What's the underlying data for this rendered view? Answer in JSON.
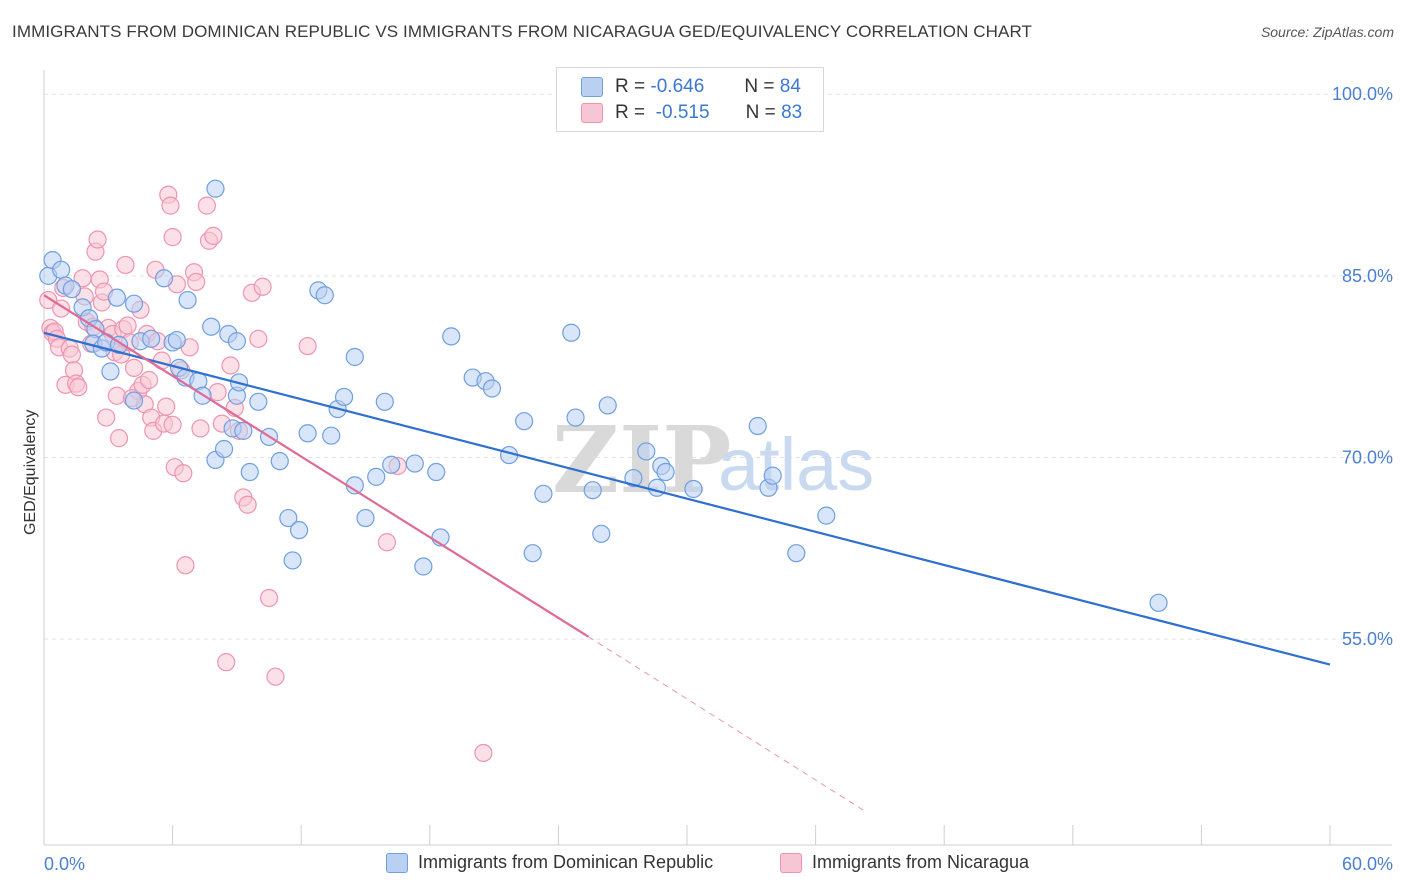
{
  "title": "IMMIGRANTS FROM DOMINICAN REPUBLIC VS IMMIGRANTS FROM NICARAGUA GED/EQUIVALENCY CORRELATION CHART",
  "source": "Source: ZipAtlas.com",
  "watermark": {
    "part1": "ZIP",
    "part2": "atlas"
  },
  "colors": {
    "blue_fill": "#b9d0f2",
    "blue_stroke": "#6f9fe0",
    "blue_line": "#2e6fd0",
    "pink_fill": "#f7c6d4",
    "pink_stroke": "#ee94b0",
    "pink_line": "#e06a96",
    "grid": "#e3e3e3",
    "tick_text": "#4a7fd1"
  },
  "legend": {
    "rows": [
      {
        "r_label": "R =",
        "r_value": "-0.646",
        "n_label": "N =",
        "n_value": "84"
      },
      {
        "r_label": "R =",
        "r_value": "-0.515",
        "n_label": "N =",
        "n_value": "83"
      }
    ]
  },
  "bottom_legend": {
    "blue": "Immigrants from Dominican Republic",
    "pink": "Immigrants from Nicaragua"
  },
  "chart_data": {
    "type": "scatter",
    "title": "IMMIGRANTS FROM DOMINICAN REPUBLIC VS IMMIGRANTS FROM NICARAGUA GED/EQUIVALENCY CORRELATION CHART",
    "xlabel": "",
    "ylabel": "GED/Equivalency",
    "xlim": [
      0,
      60
    ],
    "ylim": [
      38,
      102
    ],
    "x_tick_labels": [
      "0.0%",
      "60.0%"
    ],
    "y_ticks": [
      55,
      70,
      85,
      100
    ],
    "y_tick_labels": [
      "55.0%",
      "70.0%",
      "85.0%",
      "100.0%"
    ],
    "grid": true,
    "legend_placement": "top-center",
    "series": [
      {
        "name": "Immigrants from Dominican Republic",
        "color": "#6f9fe0",
        "trend": {
          "x": [
            0,
            60
          ],
          "y": [
            80.3,
            52.9
          ]
        },
        "points": [
          [
            0.2,
            85.0
          ],
          [
            0.4,
            86.3
          ],
          [
            0.8,
            85.5
          ],
          [
            1.0,
            84.2
          ],
          [
            1.3,
            83.9
          ],
          [
            1.8,
            82.4
          ],
          [
            2.1,
            81.5
          ],
          [
            2.4,
            80.6
          ],
          [
            2.3,
            79.4
          ],
          [
            2.7,
            79.0
          ],
          [
            2.9,
            79.5
          ],
          [
            3.4,
            83.2
          ],
          [
            3.5,
            79.3
          ],
          [
            4.2,
            82.7
          ],
          [
            4.5,
            79.6
          ],
          [
            5.0,
            79.8
          ],
          [
            6.0,
            79.5
          ],
          [
            6.3,
            77.4
          ],
          [
            6.6,
            76.6
          ],
          [
            7.2,
            76.3
          ],
          [
            7.4,
            75.1
          ],
          [
            8.0,
            92.2
          ],
          [
            5.6,
            84.8
          ],
          [
            6.7,
            83.0
          ],
          [
            3.1,
            77.1
          ],
          [
            4.2,
            74.7
          ],
          [
            7.8,
            80.8
          ],
          [
            8.6,
            80.2
          ],
          [
            9.0,
            79.6
          ],
          [
            9.0,
            75.1
          ],
          [
            9.1,
            76.2
          ],
          [
            8.8,
            72.4
          ],
          [
            8.0,
            69.8
          ],
          [
            8.4,
            70.7
          ],
          [
            9.3,
            72.2
          ],
          [
            9.6,
            68.8
          ],
          [
            10.0,
            74.6
          ],
          [
            10.5,
            71.7
          ],
          [
            11.0,
            69.7
          ],
          [
            11.4,
            65.0
          ],
          [
            11.6,
            61.5
          ],
          [
            11.9,
            64.0
          ],
          [
            12.3,
            72.0
          ],
          [
            12.8,
            83.8
          ],
          [
            13.1,
            83.4
          ],
          [
            13.4,
            71.8
          ],
          [
            13.7,
            74.0
          ],
          [
            14.0,
            75.0
          ],
          [
            14.5,
            78.3
          ],
          [
            14.5,
            67.7
          ],
          [
            15.0,
            65.0
          ],
          [
            15.5,
            68.4
          ],
          [
            15.9,
            74.6
          ],
          [
            16.2,
            69.4
          ],
          [
            17.3,
            69.5
          ],
          [
            17.7,
            61.0
          ],
          [
            18.3,
            68.8
          ],
          [
            18.5,
            63.4
          ],
          [
            19.0,
            80.0
          ],
          [
            20.0,
            76.6
          ],
          [
            20.6,
            76.3
          ],
          [
            20.9,
            75.7
          ],
          [
            21.7,
            70.2
          ],
          [
            22.4,
            73.0
          ],
          [
            22.8,
            62.1
          ],
          [
            23.3,
            67.0
          ],
          [
            24.6,
            80.3
          ],
          [
            24.8,
            73.3
          ],
          [
            25.6,
            67.3
          ],
          [
            26.0,
            63.7
          ],
          [
            26.3,
            74.3
          ],
          [
            27.5,
            68.3
          ],
          [
            28.1,
            70.5
          ],
          [
            28.6,
            67.5
          ],
          [
            28.8,
            69.3
          ],
          [
            29.0,
            68.8
          ],
          [
            30.3,
            67.4
          ],
          [
            33.3,
            72.6
          ],
          [
            33.8,
            67.5
          ],
          [
            34.0,
            68.5
          ],
          [
            35.1,
            62.1
          ],
          [
            36.5,
            65.2
          ],
          [
            52.0,
            58.0
          ],
          [
            6.2,
            79.7
          ]
        ]
      },
      {
        "name": "Immigrants from Nicaragua",
        "color": "#ee94b0",
        "trend": {
          "x": [
            0,
            25.4
          ],
          "y": [
            83.4,
            55.2
          ]
        },
        "trend_dashed": {
          "x": [
            25.4,
            38.3
          ],
          "y": [
            55.2,
            40.8
          ]
        },
        "points": [
          [
            0.2,
            83.0
          ],
          [
            0.3,
            80.7
          ],
          [
            0.4,
            80.3
          ],
          [
            0.5,
            80.4
          ],
          [
            0.6,
            79.8
          ],
          [
            0.7,
            79.1
          ],
          [
            0.8,
            82.3
          ],
          [
            0.9,
            84.0
          ],
          [
            1.0,
            76.0
          ],
          [
            1.2,
            79.0
          ],
          [
            1.3,
            78.5
          ],
          [
            1.4,
            77.2
          ],
          [
            1.5,
            76.1
          ],
          [
            1.6,
            75.8
          ],
          [
            1.8,
            84.8
          ],
          [
            1.9,
            83.3
          ],
          [
            2.0,
            81.2
          ],
          [
            2.2,
            79.4
          ],
          [
            2.3,
            80.8
          ],
          [
            2.4,
            87.0
          ],
          [
            2.5,
            88.0
          ],
          [
            2.6,
            84.7
          ],
          [
            2.7,
            82.8
          ],
          [
            2.8,
            83.7
          ],
          [
            2.9,
            73.3
          ],
          [
            3.0,
            80.7
          ],
          [
            3.2,
            80.2
          ],
          [
            3.3,
            78.7
          ],
          [
            3.4,
            75.1
          ],
          [
            3.5,
            71.6
          ],
          [
            3.6,
            78.5
          ],
          [
            3.7,
            80.6
          ],
          [
            3.8,
            85.9
          ],
          [
            3.9,
            80.9
          ],
          [
            4.0,
            79.5
          ],
          [
            4.2,
            77.4
          ],
          [
            4.4,
            75.5
          ],
          [
            4.5,
            82.2
          ],
          [
            4.6,
            76.0
          ],
          [
            4.7,
            74.4
          ],
          [
            4.8,
            80.2
          ],
          [
            4.9,
            76.4
          ],
          [
            5.0,
            73.3
          ],
          [
            5.1,
            72.2
          ],
          [
            5.2,
            85.5
          ],
          [
            5.3,
            79.6
          ],
          [
            5.5,
            78.0
          ],
          [
            5.6,
            72.8
          ],
          [
            5.7,
            74.2
          ],
          [
            5.8,
            91.7
          ],
          [
            5.9,
            90.8
          ],
          [
            6.0,
            88.2
          ],
          [
            6.1,
            69.2
          ],
          [
            6.2,
            84.3
          ],
          [
            6.4,
            77.2
          ],
          [
            6.5,
            68.7
          ],
          [
            6.6,
            61.1
          ],
          [
            6.8,
            79.1
          ],
          [
            7.0,
            85.3
          ],
          [
            7.1,
            84.5
          ],
          [
            7.3,
            72.4
          ],
          [
            7.6,
            90.8
          ],
          [
            7.7,
            87.9
          ],
          [
            7.9,
            88.3
          ],
          [
            8.1,
            75.4
          ],
          [
            8.3,
            72.8
          ],
          [
            8.5,
            53.1
          ],
          [
            8.7,
            77.6
          ],
          [
            8.9,
            74.1
          ],
          [
            9.1,
            72.2
          ],
          [
            9.3,
            66.7
          ],
          [
            9.5,
            66.1
          ],
          [
            9.7,
            83.6
          ],
          [
            10.0,
            79.8
          ],
          [
            10.2,
            84.1
          ],
          [
            10.5,
            58.4
          ],
          [
            10.8,
            51.9
          ],
          [
            12.3,
            79.2
          ],
          [
            16.0,
            63.0
          ],
          [
            16.5,
            69.3
          ],
          [
            20.5,
            45.6
          ],
          [
            6.0,
            72.7
          ],
          [
            4.1,
            74.9
          ]
        ]
      }
    ]
  }
}
